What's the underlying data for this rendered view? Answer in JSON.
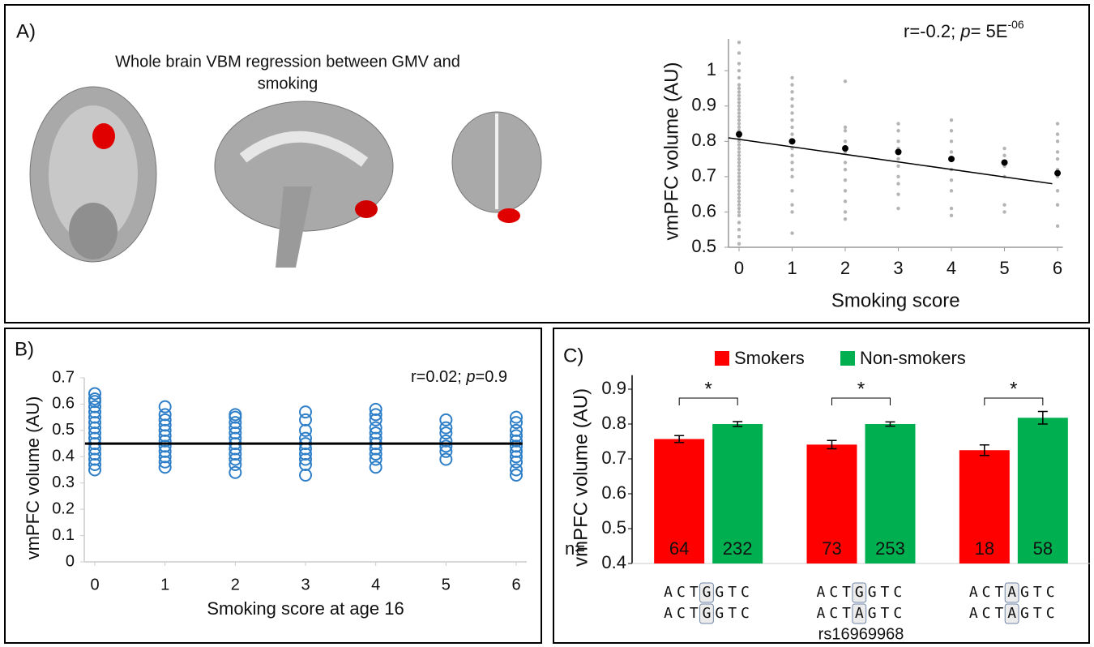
{
  "chart_data": [
    {
      "type": "scatter",
      "panel": "A)",
      "caption": [
        "Whole brain VBM regression between GMV and",
        "smoking"
      ],
      "annotation": [
        "r=-0.2; ",
        "p",
        "= 5E",
        "-06"
      ],
      "x_label": "Smoking score",
      "y_label": "vmPFC volume (AU)",
      "xlim": [
        -0.2,
        6.1
      ],
      "xticks": [
        0,
        1,
        2,
        3,
        4,
        5,
        6
      ],
      "ylim": [
        0.5,
        1.09
      ],
      "yticks": [
        0.5,
        0.6,
        0.7,
        0.8,
        0.9,
        1
      ],
      "point_color": "#b4b4b4",
      "point_radius": 2.2,
      "point_groups": [
        {
          "x": 0,
          "y": [
            0.51,
            0.53,
            0.55,
            0.57,
            0.59,
            0.6,
            0.61,
            0.62,
            0.63,
            0.64,
            0.65,
            0.66,
            0.67,
            0.68,
            0.69,
            0.7,
            0.71,
            0.72,
            0.73,
            0.74,
            0.75,
            0.76,
            0.77,
            0.78,
            0.79,
            0.8,
            0.81,
            0.82,
            0.83,
            0.84,
            0.85,
            0.86,
            0.87,
            0.88,
            0.89,
            0.9,
            0.91,
            0.92,
            0.93,
            0.94,
            0.95,
            0.96,
            0.98,
            1.0,
            1.02,
            1.05,
            1.08
          ]
        },
        {
          "x": 1,
          "y": [
            0.54,
            0.6,
            0.62,
            0.66,
            0.7,
            0.72,
            0.74,
            0.76,
            0.78,
            0.8,
            0.82,
            0.84,
            0.86,
            0.88,
            0.9,
            0.92,
            0.94,
            0.96,
            0.98
          ]
        },
        {
          "x": 2,
          "y": [
            0.58,
            0.6,
            0.63,
            0.66,
            0.69,
            0.72,
            0.74,
            0.77,
            0.8,
            0.83,
            0.84,
            0.97
          ]
        },
        {
          "x": 3,
          "y": [
            0.61,
            0.65,
            0.68,
            0.7,
            0.73,
            0.75,
            0.78,
            0.8,
            0.83,
            0.85
          ]
        },
        {
          "x": 4,
          "y": [
            0.59,
            0.61,
            0.66,
            0.69,
            0.72,
            0.75,
            0.77,
            0.8,
            0.83,
            0.86
          ]
        },
        {
          "x": 5,
          "y": [
            0.6,
            0.62,
            0.7,
            0.73,
            0.76,
            0.78
          ]
        },
        {
          "x": 6,
          "y": [
            0.56,
            0.62,
            0.66,
            0.7,
            0.72,
            0.75,
            0.77,
            0.8,
            0.82,
            0.85
          ]
        }
      ],
      "means": {
        "color": "#000000",
        "x": [
          0,
          1,
          2,
          3,
          4,
          5,
          6
        ],
        "y": [
          0.82,
          0.8,
          0.78,
          0.77,
          0.75,
          0.74,
          0.71
        ]
      },
      "trend": {
        "color": "#000000",
        "x": [
          -0.2,
          5.9
        ],
        "y": [
          0.81,
          0.68
        ]
      }
    },
    {
      "type": "scatter",
      "panel": "B)",
      "annotation": [
        "r=0.02; ",
        "p",
        "=0.9"
      ],
      "x_label": "Smoking score at age 16",
      "y_label": "vmPFC volume (AU)",
      "xlim": [
        -0.15,
        6.15
      ],
      "xticks": [
        0,
        1,
        2,
        3,
        4,
        5,
        6
      ],
      "ylim": [
        0,
        0.7
      ],
      "yticks": [
        0,
        0.1,
        0.2,
        0.3,
        0.4,
        0.5,
        0.6,
        0.7
      ],
      "point_color": "#2e7fc8",
      "point_radius": 7,
      "hollow": true,
      "point_groups": [
        {
          "x": 0,
          "y": [
            0.35,
            0.37,
            0.39,
            0.41,
            0.43,
            0.45,
            0.47,
            0.49,
            0.51,
            0.53,
            0.55,
            0.57,
            0.59,
            0.61,
            0.62,
            0.64
          ]
        },
        {
          "x": 1,
          "y": [
            0.36,
            0.38,
            0.4,
            0.42,
            0.44,
            0.46,
            0.48,
            0.5,
            0.52,
            0.54,
            0.56,
            0.59
          ]
        },
        {
          "x": 2,
          "y": [
            0.34,
            0.37,
            0.39,
            0.41,
            0.43,
            0.45,
            0.47,
            0.49,
            0.51,
            0.53,
            0.55,
            0.56
          ]
        },
        {
          "x": 3,
          "y": [
            0.33,
            0.37,
            0.39,
            0.41,
            0.43,
            0.45,
            0.47,
            0.5,
            0.54,
            0.57
          ]
        },
        {
          "x": 4,
          "y": [
            0.36,
            0.39,
            0.41,
            0.43,
            0.45,
            0.47,
            0.49,
            0.51,
            0.54,
            0.56,
            0.58
          ]
        },
        {
          "x": 5,
          "y": [
            0.39,
            0.42,
            0.44,
            0.46,
            0.49,
            0.51,
            0.54
          ]
        },
        {
          "x": 6,
          "y": [
            0.33,
            0.35,
            0.38,
            0.4,
            0.42,
            0.44,
            0.46,
            0.48,
            0.5,
            0.53,
            0.55
          ]
        }
      ],
      "trend": {
        "color": "#000000",
        "x": [
          -0.14,
          6.09
        ],
        "y": [
          0.45,
          0.45
        ]
      }
    },
    {
      "type": "bar",
      "panel": "C)",
      "y_label": "vmPFC volume (AU)",
      "ylim": [
        0.4,
        0.94
      ],
      "yticks": [
        0.4,
        0.5,
        0.6,
        0.7,
        0.8,
        0.9
      ],
      "series": [
        {
          "name": "Smokers",
          "color": "#ff0000",
          "values": [
            0.757,
            0.741,
            0.725
          ],
          "errors": [
            0.01,
            0.012,
            0.015
          ],
          "n": [
            64,
            73,
            18
          ]
        },
        {
          "name": "Non-smokers",
          "color": "#00b050",
          "values": [
            0.8,
            0.8,
            0.818
          ],
          "errors": [
            0.007,
            0.006,
            0.018
          ],
          "n": [
            232,
            253,
            58
          ]
        }
      ],
      "n_prefix": "n=",
      "significance": [
        "*",
        "*",
        "*"
      ],
      "sequences": [
        [
          [
            "ACT",
            "G",
            "GTC"
          ],
          [
            "ACT",
            "G",
            "GTC"
          ]
        ],
        [
          [
            "ACT",
            "G",
            "GTC"
          ],
          [
            "ACT",
            "A",
            "GTC"
          ]
        ],
        [
          [
            "ACT",
            "A",
            "GTC"
          ],
          [
            "ACT",
            "A",
            "GTC"
          ]
        ]
      ],
      "allele_colors": {
        "G": "#666666",
        "A": "#e8433a"
      },
      "snp_label": "rs16969968"
    }
  ]
}
